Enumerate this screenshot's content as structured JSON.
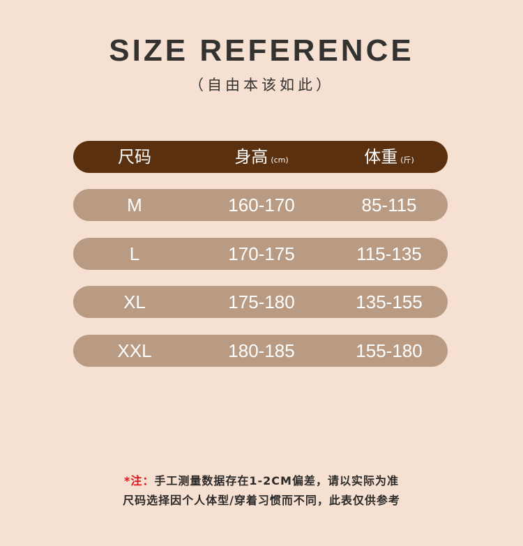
{
  "title": "SIZE REFERENCE",
  "subtitle": "（自由本该如此）",
  "table": {
    "headers": [
      {
        "label": "尺码",
        "unit": ""
      },
      {
        "label": "身高",
        "unit": "(cm)"
      },
      {
        "label": "体重",
        "unit": "(斤)"
      }
    ],
    "rows": [
      [
        "M",
        "160-170",
        "85-115"
      ],
      [
        "L",
        "170-175",
        "115-135"
      ],
      [
        "XL",
        "175-180",
        "135-155"
      ],
      [
        "XXL",
        "180-185",
        "155-180"
      ]
    ]
  },
  "note": {
    "prefix": "*注：",
    "line1": "手工测量数据存在1-2CM偏差，请以实际为准",
    "line2": "尺码选择因个人体型/穿着习惯而不同，此表仅供参考"
  },
  "colors": {
    "background": "#f6e0d2",
    "header": "#5b300e",
    "row": "#b99b83",
    "note_accent": "#e0141a"
  }
}
